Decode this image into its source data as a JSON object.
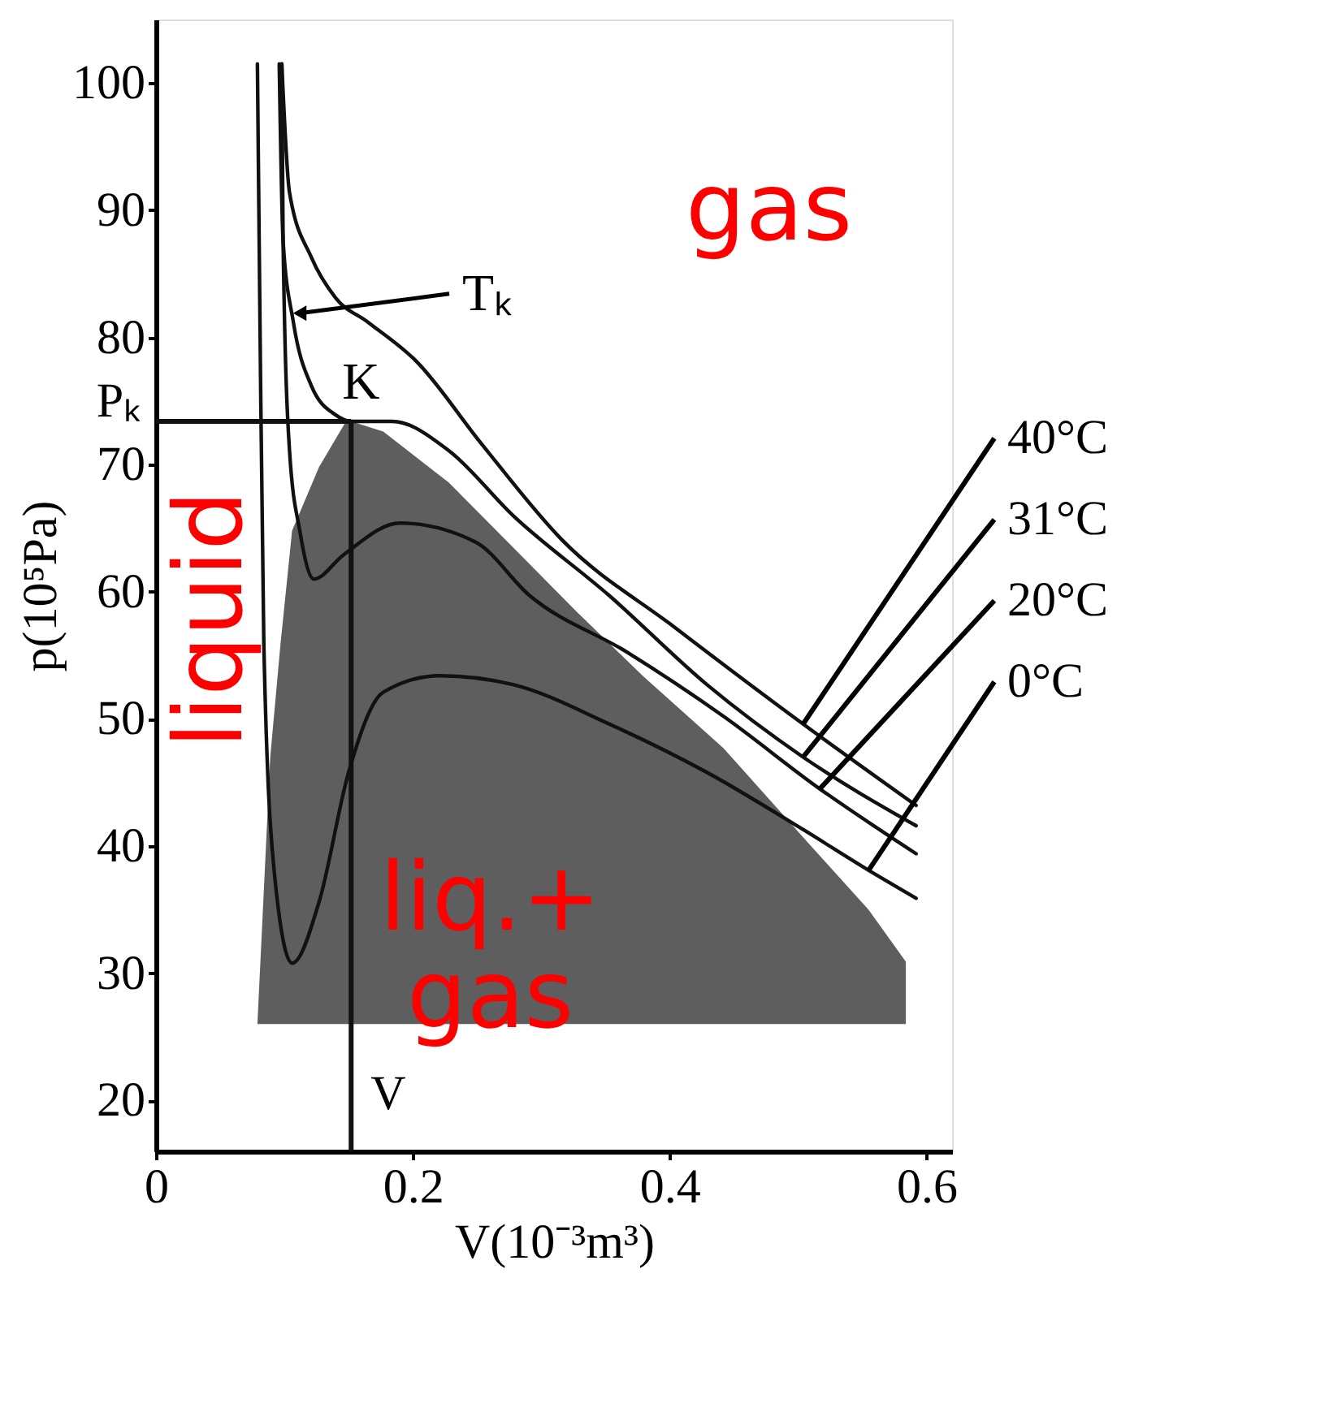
{
  "chart_data": {
    "type": "line",
    "xlabel": "V(10⁻³m³)",
    "ylabel": "p(10⁵Pa)",
    "xlim": [
      0,
      0.62
    ],
    "ylim": [
      16,
      105
    ],
    "xticks": [
      {
        "value": 0,
        "label": "0"
      },
      0.2,
      0.4,
      0.6
    ],
    "yticks": [
      20,
      30,
      40,
      50,
      60,
      70,
      80,
      90,
      100
    ],
    "grid": false,
    "marker": "none",
    "line_style": "solid",
    "series": [
      {
        "type": "area",
        "color": "#5e5e5e",
        "x": [
          0.079,
          0.089,
          0.097,
          0.106,
          0.127,
          0.148,
          0.152,
          0.177,
          0.228,
          0.278,
          0.328,
          0.379,
          0.442,
          0.504,
          0.555,
          0.584,
          0.584
        ],
        "values": [
          26.0,
          47.0,
          55.9,
          64.8,
          69.8,
          73.4,
          73.4,
          72.6,
          68.6,
          63.5,
          58.4,
          53.4,
          47.7,
          40.7,
          35.0,
          30.9,
          26.0
        ]
      },
      {
        "name": "40°C",
        "color": "#111111",
        "x": [
          0.098,
          0.104,
          0.121,
          0.14,
          0.165,
          0.203,
          0.253,
          0.316,
          0.404,
          0.504,
          0.592
        ],
        "values": [
          101.5,
          91.4,
          86.3,
          83.1,
          81.2,
          78.1,
          71.7,
          64.1,
          57.2,
          49.6,
          43.2
        ]
      },
      {
        "name": "31°C",
        "color": "#111111",
        "x": [
          0.096,
          0.099,
          0.107,
          0.121,
          0.14,
          0.152,
          0.184,
          0.228,
          0.278,
          0.353,
          0.429,
          0.504,
          0.592
        ],
        "values": [
          101.5,
          87.6,
          81.2,
          76.2,
          73.9,
          73.4,
          73.4,
          71.1,
          66.0,
          59.7,
          52.7,
          47.0,
          41.6
        ]
      },
      {
        "name": "20°C",
        "color": "#111111",
        "x": [
          0.098,
          0.099,
          0.104,
          0.112,
          0.123,
          0.146,
          0.19,
          0.249,
          0.291,
          0.366,
          0.442,
          0.517,
          0.592
        ],
        "values": [
          101.5,
          87.6,
          71.1,
          64.8,
          61.0,
          62.9,
          65.4,
          63.9,
          59.7,
          55.3,
          50.2,
          44.5,
          39.4
        ]
      },
      {
        "name": "0°C",
        "color": "#111111",
        "x": [
          0.079,
          0.081,
          0.084,
          0.092,
          0.106,
          0.127,
          0.15,
          0.177,
          0.221,
          0.278,
          0.353,
          0.429,
          0.504,
          0.555,
          0.592
        ],
        "values": [
          101.5,
          81.2,
          55.9,
          38.1,
          30.8,
          35.6,
          45.8,
          52.1,
          53.4,
          52.7,
          49.6,
          45.8,
          41.3,
          38.1,
          35.9
        ]
      }
    ],
    "ref_lines": [
      {
        "axis": "y",
        "value": 73.4,
        "label": "Pₖ",
        "color": "#111111"
      },
      {
        "axis": "x",
        "value": 0.152,
        "label": "V",
        "color": "#111111"
      }
    ],
    "annotations": [
      "gas",
      "liquid",
      "liq.+\ngas",
      {
        "text": "Tₖ",
        "x": 0.112,
        "y": 81.9
      },
      {
        "text": "K",
        "x": 0.152,
        "y": 73.4
      }
    ]
  }
}
